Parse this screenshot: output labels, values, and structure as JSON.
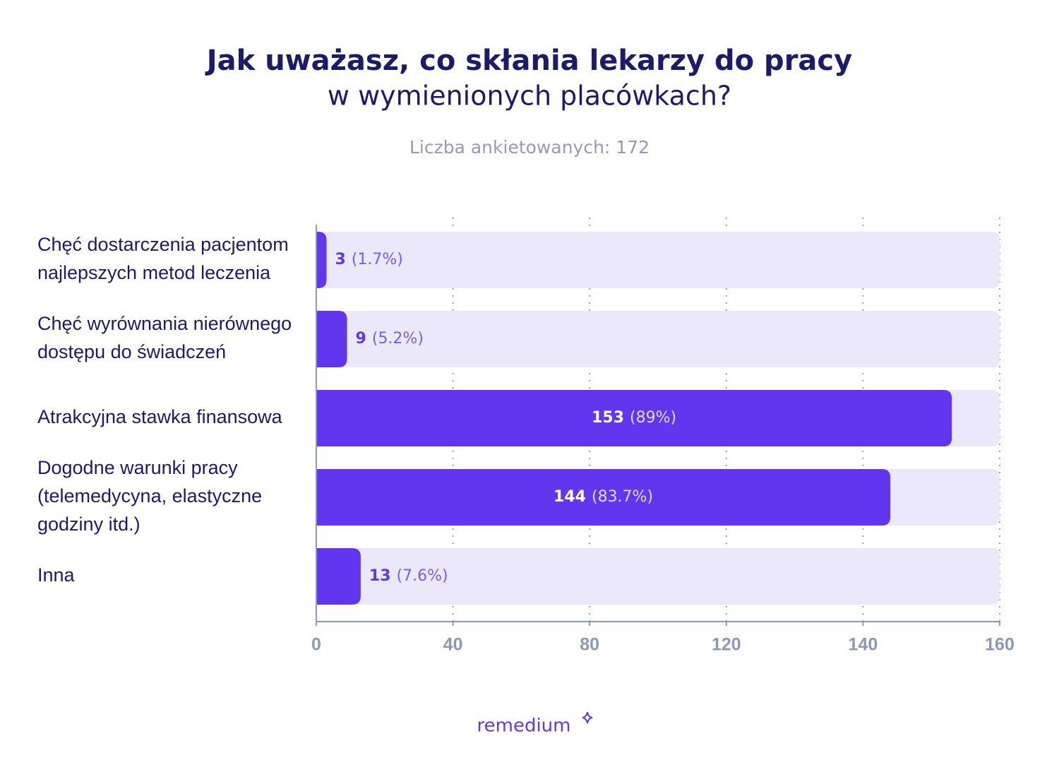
{
  "chart_data": {
    "type": "bar",
    "title": "Jak uważasz, co skłania lekarzy do pracy",
    "subtitle": "w wymienionych placówkach?",
    "note": "Liczba ankietowanych: 172",
    "categories": [
      "Chęć dostarczenia pacjentom\nnajlepszych metod leczenia",
      "Chęć wyrównania nierównego\ndostępu do świadczeń",
      "Atrakcyjna stawka finansowa",
      "Dogodne warunki pracy\n(telemedycyna, elastyczne\ngodziny itd.)",
      "Inna"
    ],
    "values": [
      3,
      9,
      153,
      144,
      13
    ],
    "percent_labels": [
      "(1.7%)",
      "(5.2%)",
      "(89%)",
      "(83.7%)",
      "(7.6%)"
    ],
    "color": "#6236ee",
    "track_color": "#ece8fb",
    "xlim": [
      0,
      160
    ],
    "xticks": [
      0,
      40,
      80,
      120,
      140,
      160
    ],
    "grid": true,
    "brand": "remedium"
  }
}
